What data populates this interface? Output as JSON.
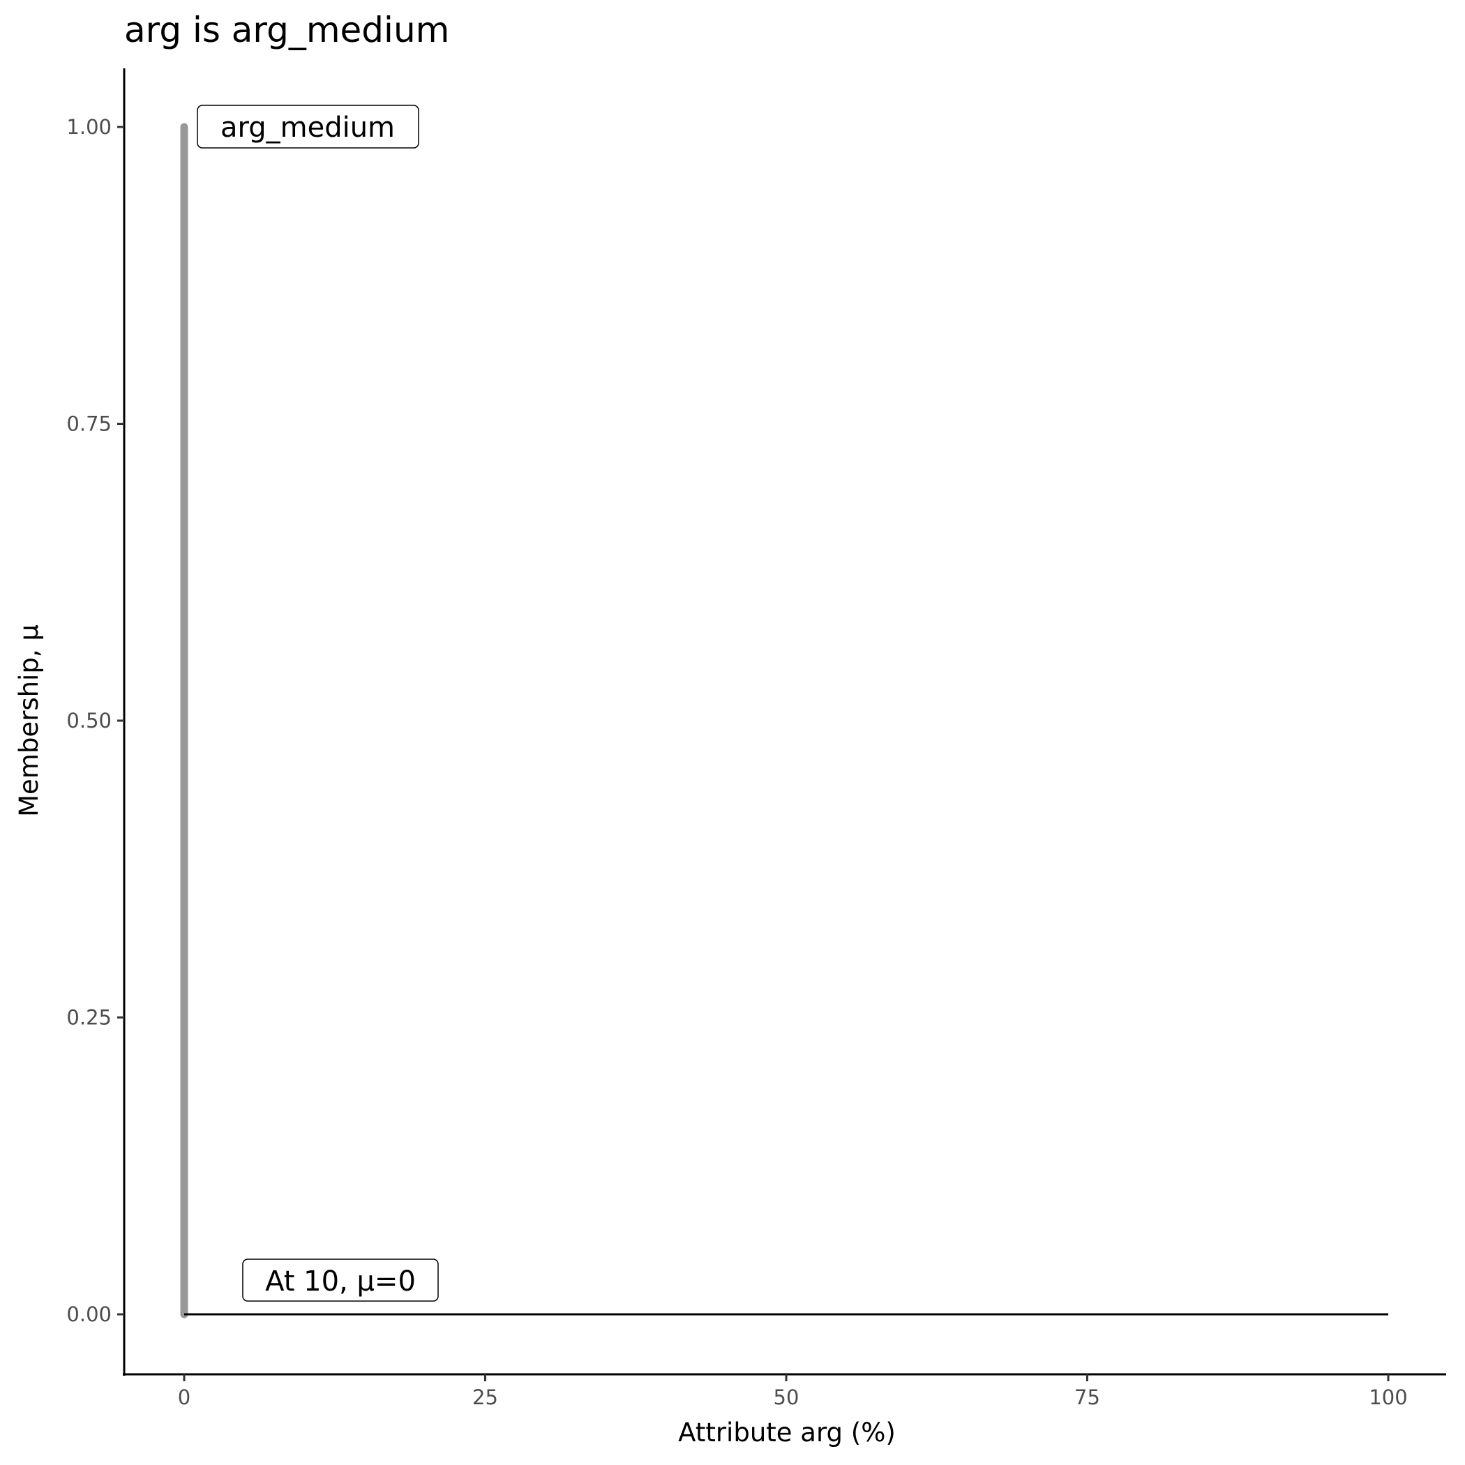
{
  "chart_data": {
    "type": "line",
    "title": "arg is arg_medium",
    "xlabel": "Attribute arg (%)",
    "ylabel": "Membership, μ",
    "xlim": [
      -5,
      105
    ],
    "ylim": [
      -0.05,
      1.05
    ],
    "xticks": [
      0,
      25,
      50,
      75,
      100
    ],
    "xtick_labels": [
      "0",
      "25",
      "50",
      "75",
      "100"
    ],
    "yticks": [
      0,
      0.25,
      0.5,
      0.75,
      1
    ],
    "ytick_labels": [
      "0.00",
      "0.25",
      "0.50",
      "0.75",
      "1.00"
    ],
    "grid": false,
    "series": [
      {
        "color": "#999999",
        "x": [
          0,
          0
        ],
        "y": [
          0,
          1
        ]
      },
      {
        "color": "#000000",
        "x": [
          0,
          100
        ],
        "y": [
          0,
          0
        ]
      }
    ],
    "annotations": [
      {
        "text": "arg_medium"
      },
      {
        "text": "At 10, μ=0"
      }
    ]
  }
}
